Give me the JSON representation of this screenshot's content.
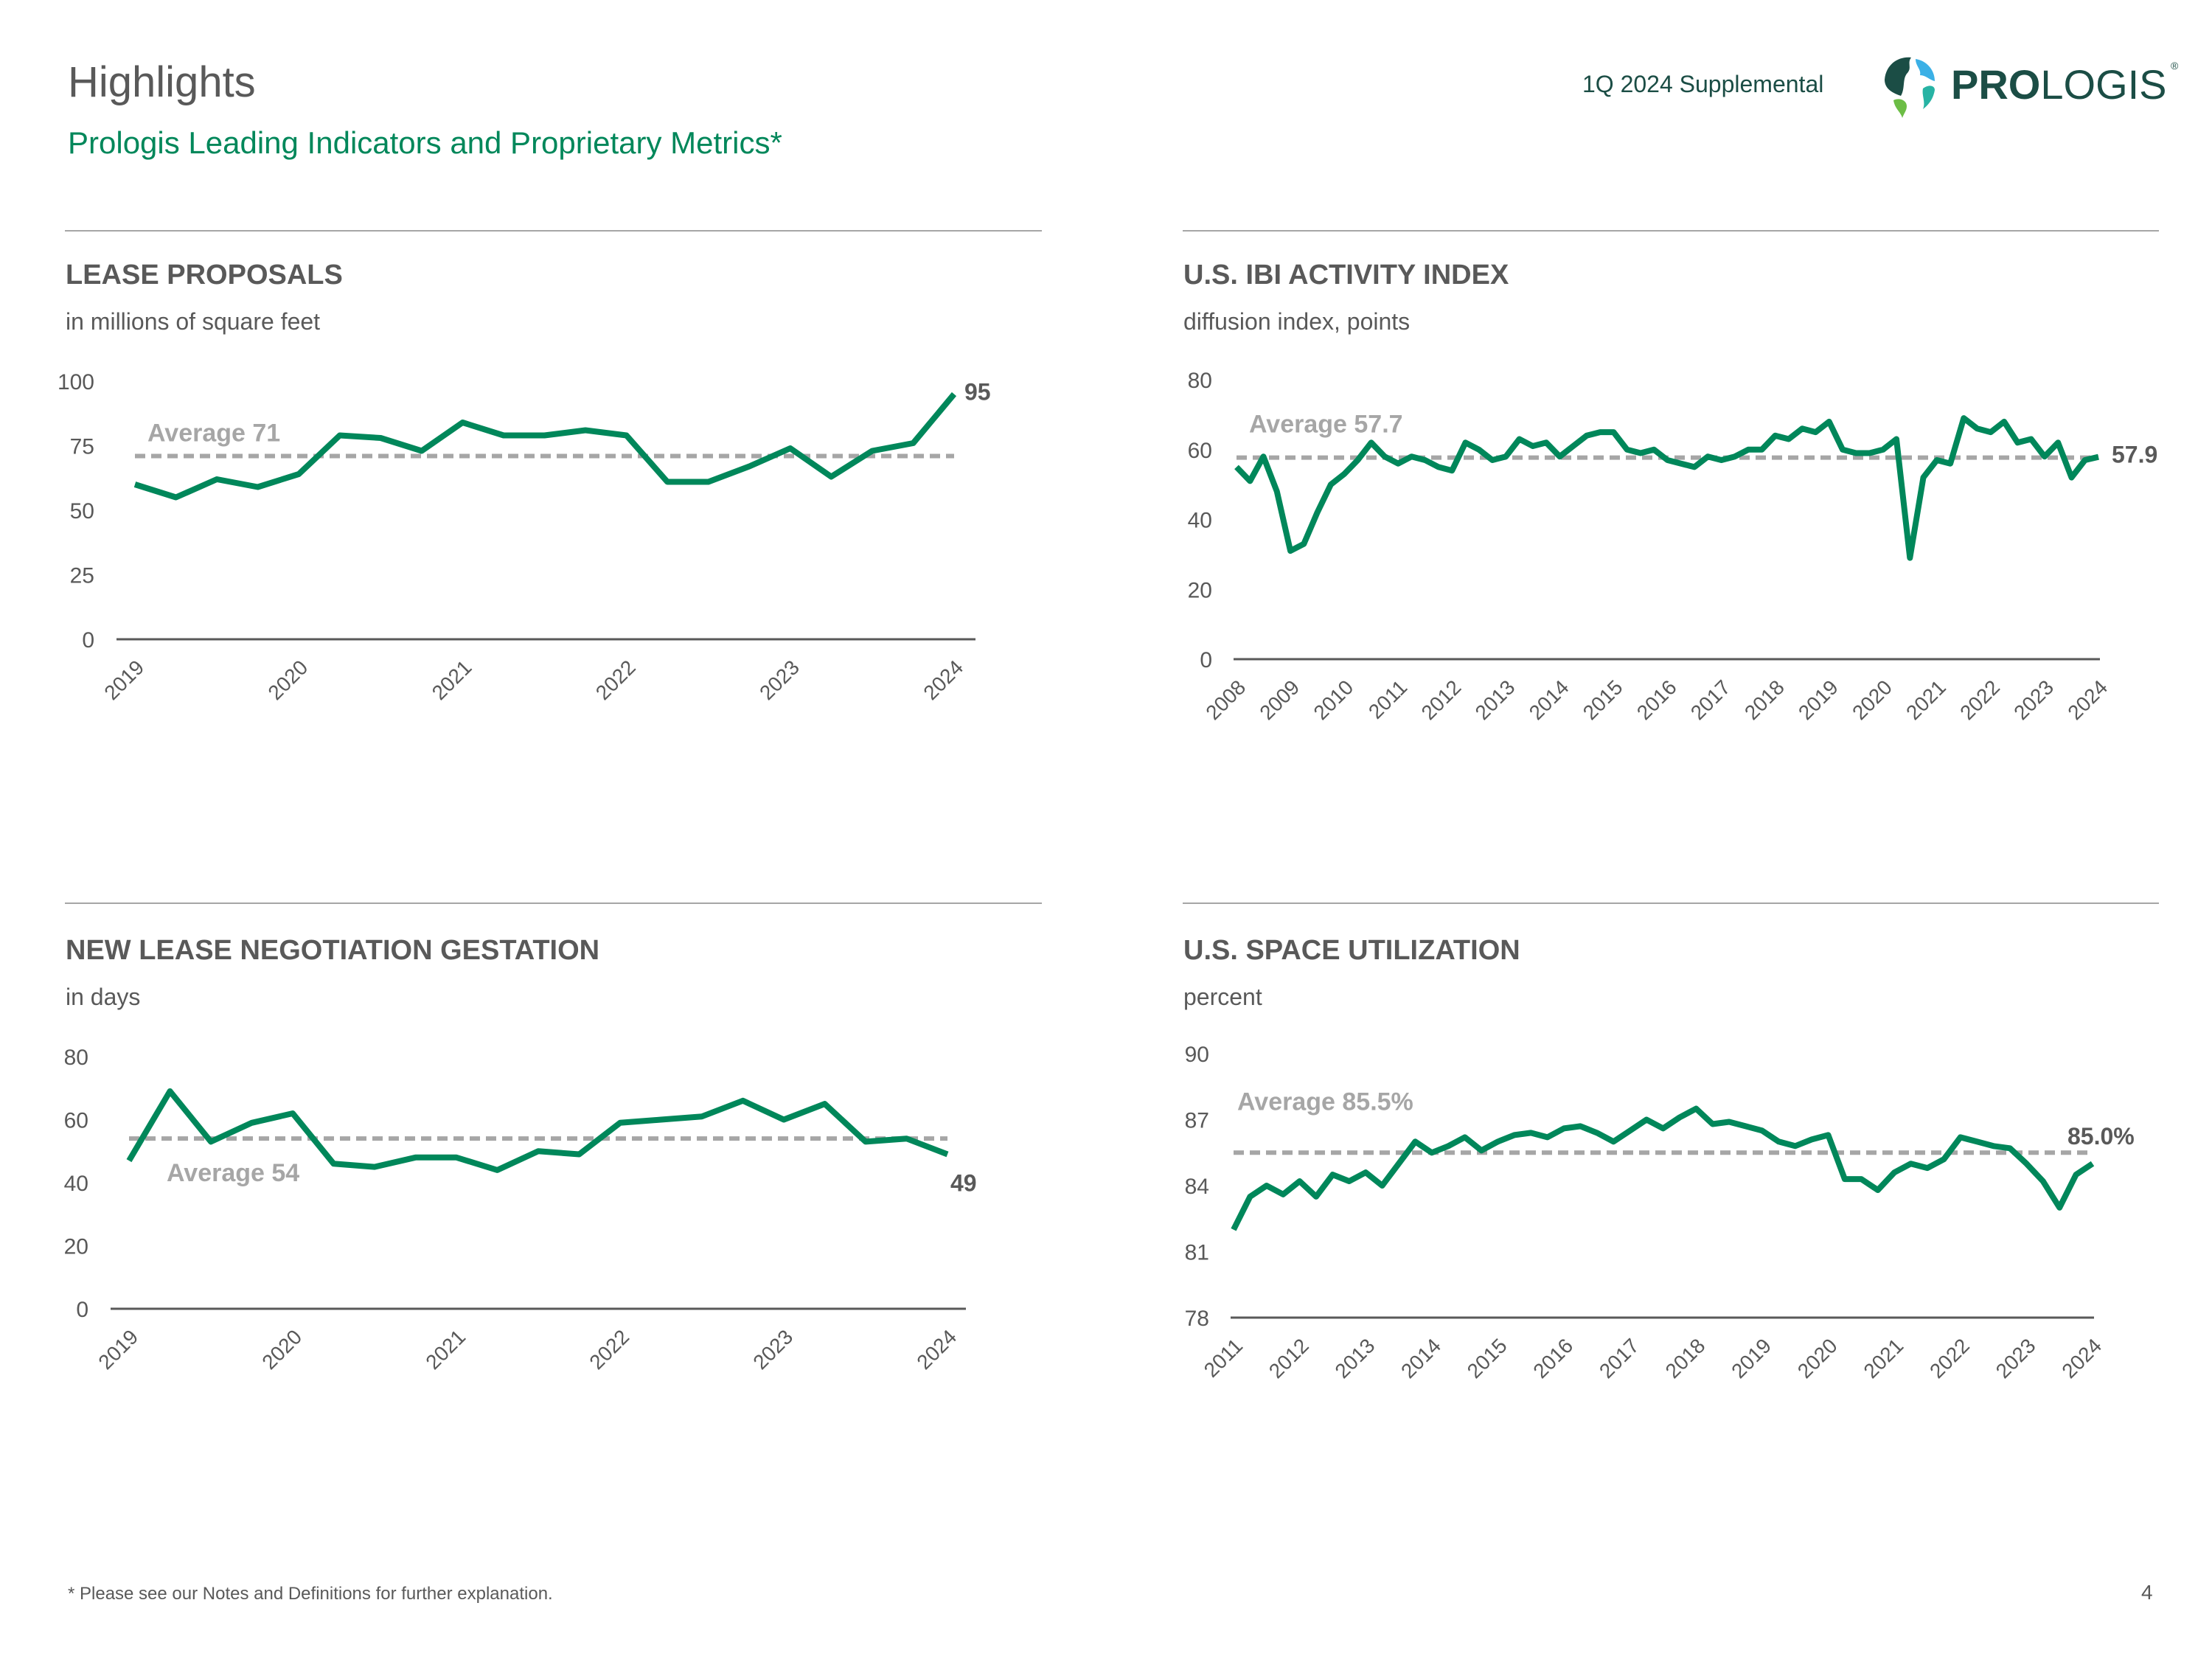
{
  "header": {
    "title": "Highlights",
    "subtitle": "Prologis Leading Indicators and Proprietary Metrics*",
    "supplemental": "1Q 2024 Supplemental",
    "logo_text": "PROLOGIS"
  },
  "colors": {
    "accent": "#00875a",
    "average": "#a6a6a6",
    "text": "#595959",
    "brand": "#1b4d45"
  },
  "charts": [
    {
      "title": "LEASE PROPOSALS",
      "subtitle": "in millions of square feet"
    },
    {
      "title": "U.S. IBI ACTIVITY INDEX",
      "subtitle": "diffusion index, points"
    },
    {
      "title": "NEW LEASE NEGOTIATION GESTATION",
      "subtitle": "in days"
    },
    {
      "title": "U.S. SPACE UTILIZATION",
      "subtitle": "percent"
    }
  ],
  "chart_data": [
    {
      "type": "line",
      "title": "LEASE PROPOSALS",
      "ylabel": "in millions of square feet",
      "start": "2019Q1",
      "frequency": "quarterly",
      "values": [
        60,
        55,
        62,
        59,
        64,
        79,
        78,
        73,
        84,
        79,
        79,
        81,
        79,
        61,
        61,
        67,
        74,
        63,
        73,
        76,
        95
      ],
      "ylim": [
        0,
        100
      ],
      "yticks": [
        "0",
        "25",
        "50",
        "75",
        "100"
      ],
      "ytick_values": [
        0,
        25,
        50,
        75,
        100
      ],
      "xticks": [
        "2019",
        "2020",
        "2021",
        "2022",
        "2023",
        "2024"
      ],
      "average": 71,
      "average_label": "Average 71",
      "end_label": "95"
    },
    {
      "type": "line",
      "title": "U.S. IBI ACTIVITY INDEX",
      "ylabel": "diffusion index, points",
      "start": "2008Q1",
      "frequency": "quarterly (approx.)",
      "values": [
        55,
        51,
        58,
        48,
        31,
        33,
        42,
        50,
        53,
        57,
        62,
        58,
        56,
        58,
        57,
        55,
        54,
        62,
        60,
        57,
        58,
        63,
        61,
        62,
        58,
        61,
        64,
        65,
        65,
        60,
        59,
        60,
        57,
        56,
        55,
        58,
        57,
        58,
        60,
        60,
        64,
        63,
        66,
        65,
        68,
        60,
        59,
        59,
        60,
        63,
        29,
        52,
        57,
        56,
        69,
        66,
        65,
        68,
        62,
        63,
        58,
        62,
        52,
        57,
        57.9
      ],
      "ylim": [
        0,
        80
      ],
      "yticks": [
        "0",
        "20",
        "40",
        "60",
        "80"
      ],
      "ytick_values": [
        0,
        20,
        40,
        60,
        80
      ],
      "xticks": [
        "2008",
        "2009",
        "2010",
        "2011",
        "2012",
        "2013",
        "2014",
        "2015",
        "2016",
        "2017",
        "2018",
        "2019",
        "2020",
        "2021",
        "2022",
        "2023",
        "2024"
      ],
      "average": 57.7,
      "average_label": "Average 57.7",
      "end_label": "57.9"
    },
    {
      "type": "line",
      "title": "NEW LEASE NEGOTIATION GESTATION",
      "ylabel": "in days",
      "start": "2019Q1",
      "frequency": "quarterly",
      "values": [
        47,
        69,
        53,
        59,
        62,
        46,
        45,
        48,
        48,
        44,
        50,
        49,
        59,
        60,
        61,
        66,
        60,
        65,
        53,
        54,
        49
      ],
      "ylim": [
        0,
        80
      ],
      "yticks": [
        "0",
        "20",
        "40",
        "60",
        "80"
      ],
      "ytick_values": [
        0,
        20,
        40,
        60,
        80
      ],
      "xticks": [
        "2019",
        "2020",
        "2021",
        "2022",
        "2023",
        "2024"
      ],
      "average": 54,
      "average_label": "Average 54",
      "end_label": "49"
    },
    {
      "type": "line",
      "title": "U.S. SPACE UTILIZATION",
      "ylabel": "percent",
      "start": "2011Q1",
      "frequency": "quarterly (approx.)",
      "values": [
        82.0,
        83.5,
        84.0,
        83.6,
        84.2,
        83.5,
        84.5,
        84.2,
        84.6,
        84.0,
        85.0,
        86.0,
        85.5,
        85.8,
        86.2,
        85.6,
        86.0,
        86.3,
        86.4,
        86.2,
        86.6,
        86.7,
        86.4,
        86.0,
        86.5,
        87.0,
        86.6,
        87.1,
        87.5,
        86.8,
        86.9,
        86.7,
        86.5,
        86.0,
        85.8,
        86.1,
        86.3,
        84.3,
        84.3,
        83.8,
        84.6,
        85.0,
        84.8,
        85.2,
        86.2,
        86.0,
        85.8,
        85.7,
        85.0,
        84.2,
        83.0,
        84.5,
        85.0
      ],
      "ylim": [
        78,
        90
      ],
      "yticks": [
        "78",
        "81",
        "84",
        "87",
        "90"
      ],
      "ytick_values": [
        78,
        81,
        84,
        87,
        90
      ],
      "xticks": [
        "2011",
        "2012",
        "2013",
        "2014",
        "2015",
        "2016",
        "2017",
        "2018",
        "2019",
        "2020",
        "2021",
        "2022",
        "2023",
        "2024"
      ],
      "average": 85.5,
      "average_label": "Average 85.5%",
      "end_label": "85.0%"
    }
  ],
  "footer": {
    "note": "* Please see our Notes and Definitions for further explanation.",
    "page_number": "4"
  }
}
